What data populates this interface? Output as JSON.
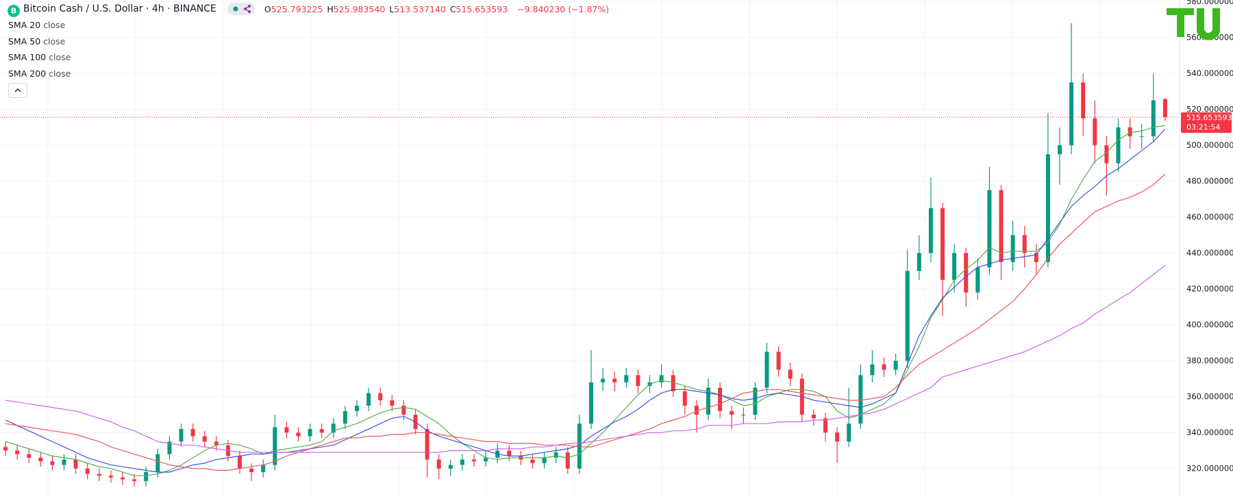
{
  "chart_data": {
    "type": "candlestick",
    "title": "Bitcoin Cash / U.S. Dollar · 4h · BINANCE",
    "ohlc_legend": [
      {
        "key": "O",
        "value": "525.793225"
      },
      {
        "key": "H",
        "value": "525.983540"
      },
      {
        "key": "L",
        "value": "513.537140"
      },
      {
        "key": "C",
        "value": "515.653593"
      }
    ],
    "change": "−9.840230 (−1.87%)",
    "up_color": "#089981",
    "down_color": "#f23645",
    "ylim": [
      304.7,
      580.9
    ],
    "yticks": [
      {
        "value": 320,
        "label": "320.000000"
      },
      {
        "value": 340,
        "label": "340.000000"
      },
      {
        "value": 360,
        "label": "360.000000"
      },
      {
        "value": 380,
        "label": "380.000000"
      },
      {
        "value": 400,
        "label": "400.000000"
      },
      {
        "value": 420,
        "label": "420.000000"
      },
      {
        "value": 440,
        "label": "440.000000"
      },
      {
        "value": 460,
        "label": "460.000000"
      },
      {
        "value": 480,
        "label": "480.000000"
      },
      {
        "value": 500,
        "label": "500.000000"
      },
      {
        "value": 520,
        "label": "520.000000"
      },
      {
        "value": 540,
        "label": "540.000000"
      },
      {
        "value": 560,
        "label": "560.000000"
      },
      {
        "value": 580,
        "label": "580.000000"
      }
    ],
    "grid": true,
    "last_price": {
      "value": 515.653593,
      "label": "515.653593",
      "countdown": "03:21:54"
    },
    "open": [
      332,
      330,
      328,
      326,
      324,
      322,
      325,
      320,
      317,
      316,
      315,
      314,
      313,
      318,
      328,
      335,
      342,
      338,
      335,
      333,
      327,
      320,
      318,
      322,
      343,
      340,
      338,
      342,
      340,
      345,
      352,
      355,
      362,
      358,
      355,
      350,
      342,
      325,
      320,
      322,
      325,
      324,
      326,
      330,
      327,
      325,
      323,
      326,
      329,
      320,
      345,
      368,
      370,
      368,
      372,
      366,
      368,
      372,
      363,
      355,
      350,
      365,
      352,
      350,
      350,
      365,
      385,
      375,
      370,
      350,
      348,
      340,
      335,
      345,
      372,
      378,
      375,
      380,
      430,
      440,
      465,
      425,
      440,
      418,
      432,
      475,
      435,
      450,
      440,
      435,
      495,
      500,
      535,
      515,
      500,
      490,
      510,
      505,
      505,
      525.793225
    ],
    "high": [
      335,
      333,
      331,
      329,
      327,
      328,
      328,
      323,
      320,
      319,
      318,
      317,
      321,
      331,
      338,
      345,
      345,
      341,
      338,
      336,
      330,
      323,
      325,
      350,
      346,
      343,
      345,
      345,
      348,
      355,
      358,
      365,
      365,
      361,
      358,
      353,
      345,
      328,
      325,
      328,
      328,
      330,
      334,
      333,
      330,
      328,
      329,
      332,
      332,
      350,
      386,
      376,
      374,
      376,
      375,
      372,
      378,
      375,
      366,
      358,
      370,
      368,
      355,
      354,
      368,
      390,
      388,
      379,
      373,
      353,
      351,
      343,
      365,
      378,
      386,
      382,
      384,
      442,
      450,
      482,
      468,
      445,
      443,
      437,
      488,
      478,
      458,
      455,
      445,
      518,
      510,
      568,
      540,
      525,
      505,
      515,
      515,
      512,
      540,
      525.98354
    ],
    "low": [
      327,
      325,
      323,
      321,
      319,
      319,
      317,
      314,
      313,
      312,
      311,
      310,
      310,
      315,
      325,
      332,
      335,
      332,
      330,
      324,
      317,
      313,
      315,
      319,
      337,
      335,
      335,
      337,
      337,
      342,
      349,
      352,
      355,
      352,
      347,
      339,
      315,
      314,
      316,
      319,
      321,
      321,
      323,
      324,
      322,
      320,
      320,
      323,
      317,
      317,
      342,
      363,
      363,
      365,
      362,
      362,
      365,
      360,
      350,
      340,
      347,
      348,
      342,
      345,
      347,
      362,
      371,
      366,
      346,
      344,
      335,
      323,
      332,
      342,
      368,
      371,
      372,
      376,
      425,
      435,
      405,
      418,
      410,
      414,
      428,
      425,
      430,
      432,
      428,
      432,
      478,
      495,
      505,
      490,
      472,
      485,
      498,
      498,
      502,
      513.53714
    ],
    "close": [
      330,
      328,
      326,
      324,
      322,
      325,
      320,
      317,
      316,
      315,
      314,
      313,
      318,
      328,
      335,
      342,
      338,
      335,
      333,
      327,
      320,
      318,
      322,
      343,
      340,
      338,
      342,
      340,
      345,
      352,
      355,
      362,
      358,
      355,
      350,
      342,
      325,
      320,
      322,
      325,
      324,
      326,
      330,
      327,
      325,
      323,
      326,
      329,
      320,
      345,
      368,
      370,
      368,
      372,
      366,
      368,
      372,
      363,
      355,
      350,
      365,
      352,
      350,
      350,
      365,
      385,
      375,
      370,
      350,
      348,
      340,
      335,
      345,
      372,
      378,
      375,
      380,
      430,
      440,
      465,
      425,
      440,
      418,
      432,
      475,
      435,
      450,
      440,
      435,
      495,
      500,
      535,
      515,
      500,
      490,
      510,
      505,
      505,
      525,
      515.653593
    ],
    "series": [
      {
        "name": "SMA 20",
        "source": "close",
        "color": "#4caf50",
        "values": [
          335,
          333,
          331,
          329,
          327,
          326,
          325,
          323,
          321,
          320,
          318,
          316,
          316,
          317,
          319,
          322,
          326,
          330,
          333,
          334,
          333,
          331,
          328,
          330,
          331,
          332,
          333,
          335,
          341,
          343,
          345,
          348,
          351,
          353,
          354,
          353,
          349,
          345,
          339,
          334,
          330,
          326,
          325,
          326,
          326,
          326,
          326,
          327,
          326,
          328,
          334,
          340,
          347,
          354,
          361,
          367,
          369,
          368,
          366,
          364,
          363,
          361,
          358,
          355,
          356,
          360,
          362,
          364,
          364,
          363,
          360,
          352,
          348,
          350,
          353,
          356,
          362,
          375,
          388,
          404,
          414,
          425,
          431,
          436,
          443,
          440,
          441,
          441,
          441,
          446,
          456,
          470,
          481,
          491,
          496,
          503,
          507,
          508,
          510,
          511
        ]
      },
      {
        "name": "SMA 50",
        "source": "close",
        "color": "#3f4fe0",
        "values": [
          347,
          344,
          341,
          338,
          335,
          332,
          329,
          326,
          324,
          322,
          321,
          320,
          319,
          318,
          318,
          320,
          322,
          323,
          325,
          326,
          327,
          328,
          328,
          329,
          329,
          330,
          331,
          332,
          333,
          336,
          339,
          342,
          345,
          348,
          349,
          346,
          341,
          338,
          336,
          334,
          332,
          330,
          328,
          327,
          327,
          328,
          329,
          330,
          331,
          333,
          338,
          342,
          346,
          349,
          353,
          358,
          362,
          364,
          364,
          363,
          362,
          361,
          359,
          358,
          359,
          361,
          362,
          361,
          360,
          358,
          357,
          356,
          355,
          354,
          356,
          359,
          362,
          378,
          394,
          405,
          415,
          421,
          427,
          432,
          434,
          436,
          437,
          438,
          439,
          448,
          457,
          466,
          472,
          477,
          483,
          487,
          492,
          497,
          502,
          509
        ]
      },
      {
        "name": "SMA 100",
        "source": "close",
        "color": "#f05454",
        "values": [
          345,
          344,
          343,
          342,
          341,
          340,
          339,
          337,
          335,
          332,
          330,
          328,
          326,
          324,
          322,
          321,
          320,
          320,
          319,
          319,
          320,
          321,
          322,
          324,
          327,
          329,
          331,
          333,
          335,
          337,
          337,
          338,
          338,
          339,
          339,
          340,
          340,
          339,
          338,
          337,
          336,
          335,
          335,
          334,
          334,
          334,
          333,
          333,
          333,
          332,
          332,
          334,
          336,
          338,
          340,
          342,
          345,
          347,
          349,
          352,
          354,
          356,
          359,
          362,
          363,
          364,
          364,
          363,
          362,
          361,
          360,
          359,
          358,
          358,
          359,
          360,
          365,
          372,
          378,
          382,
          386,
          390,
          394,
          398,
          403,
          408,
          413,
          420,
          428,
          437,
          445,
          451,
          457,
          463,
          466,
          469,
          471,
          474,
          478,
          484
        ]
      },
      {
        "name": "SMA 200",
        "source": "close",
        "color": "#d060ea",
        "values": [
          358,
          357,
          356,
          355,
          354,
          353,
          352,
          350,
          348,
          346,
          343,
          341,
          338,
          335,
          334,
          333,
          333,
          332,
          331,
          330,
          329,
          329,
          329,
          329,
          329,
          329,
          329,
          329,
          329,
          329,
          329,
          329,
          329,
          329,
          329,
          329,
          329,
          329,
          330,
          330,
          330,
          330,
          331,
          331,
          331,
          332,
          332,
          333,
          334,
          334,
          335,
          336,
          337,
          338,
          339,
          340,
          340,
          341,
          341,
          342,
          344,
          344,
          344,
          345,
          345,
          345,
          346,
          346,
          346,
          347,
          347,
          348,
          349,
          350,
          351,
          353,
          356,
          359,
          362,
          365,
          371,
          373,
          375,
          377,
          379,
          381,
          383,
          385,
          388,
          391,
          394,
          398,
          401,
          406,
          410,
          414,
          418,
          423,
          428,
          433
        ]
      }
    ]
  }
}
